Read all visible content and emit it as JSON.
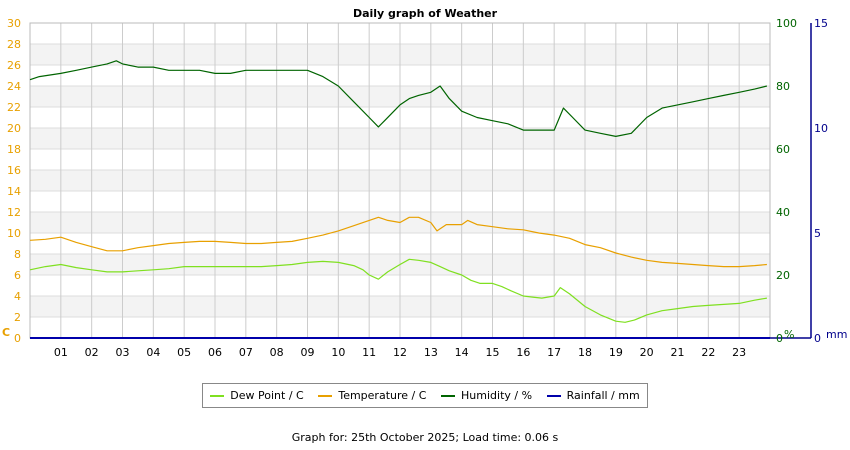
{
  "chart_data": {
    "type": "line",
    "title": "Daily graph of Weather",
    "x_ticks": [
      "01",
      "02",
      "03",
      "04",
      "05",
      "06",
      "07",
      "08",
      "09",
      "10",
      "11",
      "12",
      "13",
      "14",
      "15",
      "16",
      "17",
      "18",
      "19",
      "20",
      "21",
      "22",
      "23"
    ],
    "xlim": [
      0,
      24
    ],
    "left_axis": {
      "label": "C",
      "min": 0,
      "max": 30,
      "ticks": [
        0,
        2,
        4,
        6,
        8,
        10,
        12,
        14,
        16,
        18,
        20,
        22,
        24,
        26,
        28,
        30
      ],
      "color": "#e8a000"
    },
    "right_axis_1": {
      "label": "%",
      "min": 0,
      "max": 100,
      "ticks": [
        0,
        20,
        40,
        60,
        80,
        100
      ],
      "color": "#006400"
    },
    "right_axis_2": {
      "label": "mm",
      "min": 0,
      "max": 15,
      "ticks": [
        0,
        5,
        10,
        15
      ],
      "color": "#00008b"
    },
    "series": [
      {
        "name": "Dew Point / C",
        "color": "#7fe020",
        "axis": "left",
        "x": [
          0,
          0.5,
          1,
          1.5,
          2,
          2.5,
          3,
          3.5,
          4,
          4.5,
          5,
          5.5,
          6,
          6.5,
          7,
          7.5,
          8,
          8.5,
          9,
          9.5,
          10,
          10.5,
          10.8,
          11,
          11.3,
          11.6,
          12,
          12.3,
          12.6,
          13,
          13.3,
          13.6,
          14,
          14.3,
          14.6,
          15,
          15.3,
          15.6,
          16,
          16.3,
          16.6,
          17,
          17.2,
          17.5,
          18,
          18.5,
          19,
          19.3,
          19.6,
          20,
          20.5,
          21,
          21.5,
          22,
          22.5,
          23,
          23.5,
          23.9
        ],
        "values": [
          6.5,
          6.8,
          7.0,
          6.7,
          6.5,
          6.3,
          6.3,
          6.4,
          6.5,
          6.6,
          6.8,
          6.8,
          6.8,
          6.8,
          6.8,
          6.8,
          6.9,
          7.0,
          7.2,
          7.3,
          7.2,
          6.9,
          6.5,
          6.0,
          5.6,
          6.3,
          7.0,
          7.5,
          7.4,
          7.2,
          6.8,
          6.4,
          6.0,
          5.5,
          5.2,
          5.2,
          4.9,
          4.5,
          4.0,
          3.9,
          3.8,
          4.0,
          4.8,
          4.2,
          3.0,
          2.2,
          1.6,
          1.5,
          1.7,
          2.2,
          2.6,
          2.8,
          3.0,
          3.1,
          3.2,
          3.3,
          3.6,
          3.8
        ]
      },
      {
        "name": "Temperature / C",
        "color": "#e8a000",
        "axis": "left",
        "x": [
          0,
          0.5,
          1,
          1.5,
          2,
          2.5,
          3,
          3.5,
          4,
          4.5,
          5,
          5.5,
          6,
          6.5,
          7,
          7.5,
          8,
          8.5,
          9,
          9.5,
          10,
          10.5,
          11,
          11.3,
          11.6,
          12,
          12.3,
          12.6,
          13,
          13.2,
          13.5,
          14,
          14.2,
          14.5,
          15,
          15.5,
          16,
          16.5,
          17,
          17.5,
          18,
          18.5,
          19,
          19.5,
          20,
          20.5,
          21,
          21.5,
          22,
          22.5,
          23,
          23.5,
          23.9
        ],
        "values": [
          9.3,
          9.4,
          9.6,
          9.1,
          8.7,
          8.3,
          8.3,
          8.6,
          8.8,
          9.0,
          9.1,
          9.2,
          9.2,
          9.1,
          9.0,
          9.0,
          9.1,
          9.2,
          9.5,
          9.8,
          10.2,
          10.7,
          11.2,
          11.5,
          11.2,
          11.0,
          11.5,
          11.5,
          11.0,
          10.2,
          10.8,
          10.8,
          11.2,
          10.8,
          10.6,
          10.4,
          10.3,
          10.0,
          9.8,
          9.5,
          8.9,
          8.6,
          8.1,
          7.7,
          7.4,
          7.2,
          7.1,
          7.0,
          6.9,
          6.8,
          6.8,
          6.9,
          7.0
        ]
      },
      {
        "name": "Humidity / %",
        "color": "#006400",
        "axis": "right1",
        "x": [
          0,
          0.3,
          1,
          1.5,
          2,
          2.5,
          2.8,
          3,
          3.5,
          4,
          4.5,
          5,
          5.5,
          6,
          6.5,
          7,
          7.5,
          8,
          8.5,
          9,
          9.5,
          10,
          10.5,
          11,
          11.3,
          11.5,
          12,
          12.3,
          12.6,
          13,
          13.3,
          13.6,
          14,
          14.5,
          15,
          15.5,
          16,
          16.5,
          17,
          17.3,
          17.6,
          18,
          18.5,
          19,
          19.5,
          20,
          20.5,
          21,
          21.5,
          22,
          22.5,
          23,
          23.5,
          23.9
        ],
        "values": [
          82,
          83,
          84,
          85,
          86,
          87,
          88,
          87,
          86,
          86,
          85,
          85,
          85,
          84,
          84,
          85,
          85,
          85,
          85,
          85,
          83,
          80,
          75,
          70,
          67,
          69,
          74,
          76,
          77,
          78,
          80,
          76,
          72,
          70,
          69,
          68,
          66,
          66,
          66,
          73,
          70,
          66,
          65,
          64,
          65,
          70,
          73,
          74,
          75,
          76,
          77,
          78,
          79,
          80
        ]
      },
      {
        "name": "Rainfall / mm",
        "color": "#0000aa",
        "axis": "right2",
        "x": [
          0,
          24
        ],
        "values": [
          0,
          0
        ]
      }
    ],
    "grid": true,
    "legend_position": "bottom-center"
  },
  "footer": "Graph for: 25th October 2025; Load time: 0.06 s"
}
